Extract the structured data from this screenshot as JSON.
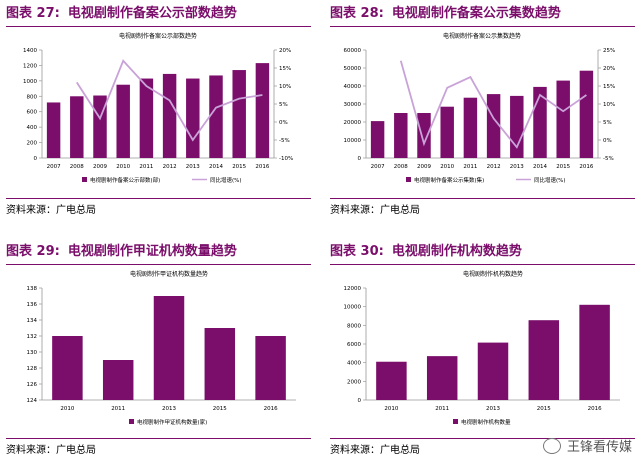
{
  "panels": [
    {
      "num": "图表 27:",
      "heading": "电视剧制作备案公示部数趋势",
      "source": "资料来源：广电总局",
      "chart_data": {
        "type": "bar+line",
        "title": "电视剧制作备案公示部数趋势",
        "categories": [
          "2007",
          "2008",
          "2009",
          "2010",
          "2011",
          "2012",
          "2013",
          "2014",
          "2015",
          "2016"
        ],
        "series": [
          {
            "name": "电视剧制作备案公示部数(部)",
            "type": "bar",
            "axis": "left",
            "values": [
              720,
              800,
              810,
              950,
              1030,
              1090,
              1030,
              1070,
              1140,
              1230
            ]
          },
          {
            "name": "同比增速(%)",
            "type": "line",
            "axis": "right",
            "values": [
              null,
              11,
              1,
              17,
              10,
              6,
              -5,
              4,
              6.5,
              7.5
            ]
          }
        ],
        "ylim": [
          0,
          1400
        ],
        "yticks": [
          0,
          200,
          400,
          600,
          800,
          1000,
          1200,
          1400
        ],
        "y2lim": [
          -10,
          20
        ],
        "y2ticks": [
          "-10%",
          "-5%",
          "0%",
          "5%",
          "10%",
          "15%",
          "20%"
        ]
      }
    },
    {
      "num": "图表 28:",
      "heading": "电视剧制作备案公示集数趋势",
      "source": "资料来源：广电总局",
      "chart_data": {
        "type": "bar+line",
        "title": "电视剧制作备案公示集数趋势",
        "categories": [
          "2007",
          "2008",
          "2009",
          "2010",
          "2011",
          "2012",
          "2013",
          "2014",
          "2015",
          "2016"
        ],
        "series": [
          {
            "name": "电视剧制作备案公示集数(集)",
            "type": "bar",
            "axis": "left",
            "values": [
              20500,
              25000,
              25000,
              28500,
              33500,
              35500,
              34500,
              39500,
              43000,
              48500
            ]
          },
          {
            "name": "同比增速(%)",
            "type": "line",
            "axis": "right",
            "values": [
              null,
              22,
              -1,
              14.5,
              17.5,
              6,
              -2,
              12.5,
              8,
              12.5
            ]
          }
        ],
        "ylim": [
          0,
          60000
        ],
        "yticks": [
          0,
          10000,
          20000,
          30000,
          40000,
          50000,
          60000
        ],
        "y2lim": [
          -5,
          25
        ],
        "y2ticks": [
          "-5%",
          "0%",
          "5%",
          "10%",
          "15%",
          "20%",
          "25%"
        ]
      }
    },
    {
      "num": "图表 29:",
      "heading": "电视剧制作甲证机构数量趋势",
      "source": "资料来源：广电总局",
      "chart_data": {
        "type": "bar",
        "title": "电视剧制作甲证机构数量趋势",
        "categories": [
          "2010",
          "2011",
          "2013",
          "2015",
          "2016"
        ],
        "series": [
          {
            "name": "电视剧制作甲证机构数量(家)",
            "type": "bar",
            "axis": "left",
            "values": [
              132,
              129,
              137,
              133,
              132
            ]
          }
        ],
        "ylim": [
          124,
          138
        ],
        "yticks": [
          124,
          126,
          128,
          130,
          132,
          134,
          136,
          138
        ]
      }
    },
    {
      "num": "图表 30:",
      "heading": "电视剧制作机构数趋势",
      "source": "资料来源：广电总局",
      "chart_data": {
        "type": "bar",
        "title": "电视剧制作机构数趋势",
        "categories": [
          "2010",
          "2011",
          "2013",
          "2015",
          "2016"
        ],
        "series": [
          {
            "name": "电视剧制作机构数量",
            "type": "bar",
            "axis": "left",
            "values": [
              4100,
              4700,
              6150,
              8550,
              10200
            ]
          }
        ],
        "ylim": [
          0,
          12000
        ],
        "yticks": [
          0,
          2000,
          4000,
          6000,
          8000,
          10000,
          12000
        ]
      }
    }
  ],
  "watermark": "王锋看传媒",
  "colors": {
    "bar": "#7b0e6b",
    "line": "#c9a2d8",
    "heading": "#7b0e6b"
  },
  "icons": {
    "watermark": "wechat-icon"
  }
}
